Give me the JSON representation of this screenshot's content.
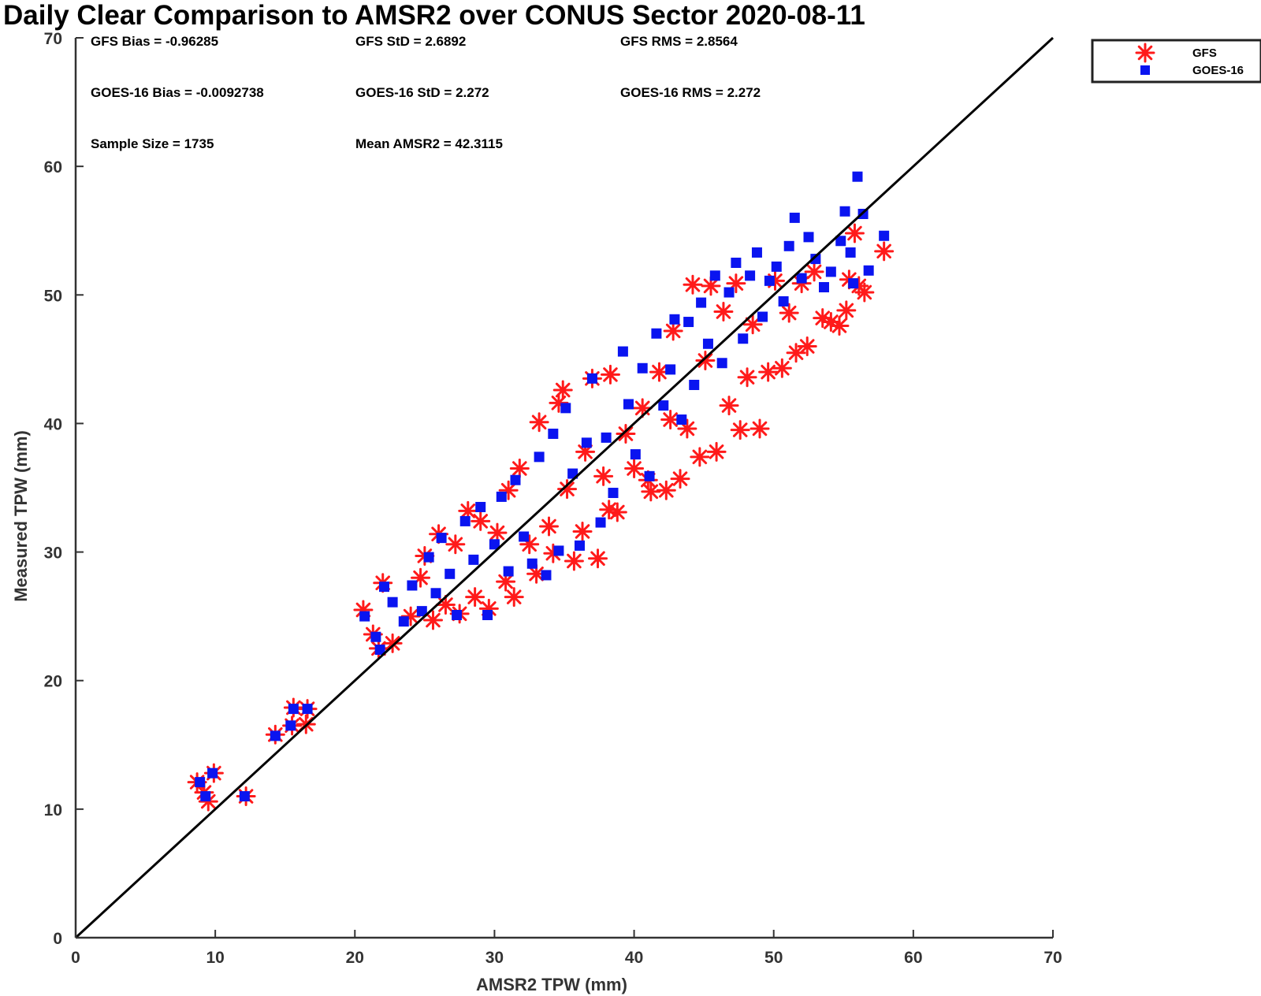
{
  "chart_data": {
    "type": "scatter",
    "title": "Daily Clear Comparison to AMSR2 over CONUS Sector 2020-08-11",
    "xlabel": "AMSR2 TPW (mm)",
    "ylabel": "Measured TPW (mm)",
    "xlim": [
      0,
      70
    ],
    "ylim": [
      0,
      70
    ],
    "xticks": [
      "0",
      "10",
      "20",
      "30",
      "40",
      "50",
      "60",
      "70"
    ],
    "yticks": [
      "0",
      "10",
      "20",
      "30",
      "40",
      "50",
      "60",
      "70"
    ],
    "grid": false,
    "legend_position": "outside-top-right",
    "reference_line": {
      "x": [
        0,
        70
      ],
      "y": [
        0,
        70
      ],
      "color": "#000000"
    },
    "stats": [
      {
        "text": "GFS Bias = -0.96285",
        "col": 0,
        "row": 0
      },
      {
        "text": "GFS StD = 2.6892",
        "col": 1,
        "row": 0
      },
      {
        "text": "GFS RMS = 2.8564",
        "col": 2,
        "row": 0
      },
      {
        "text": "GOES-16 Bias = -0.0092738",
        "col": 0,
        "row": 1
      },
      {
        "text": "GOES-16 StD = 2.272",
        "col": 1,
        "row": 1
      },
      {
        "text": "GOES-16 RMS = 2.272",
        "col": 2,
        "row": 1
      },
      {
        "text": "Sample Size = 1735",
        "col": 0,
        "row": 2
      },
      {
        "text": "Mean AMSR2 = 42.3115",
        "col": 1,
        "row": 2
      }
    ],
    "series": [
      {
        "name": "GFS",
        "marker": "asterisk",
        "color": "#ff1a1a",
        "points": [
          [
            8.7,
            12.1
          ],
          [
            9.2,
            11.3
          ],
          [
            9.5,
            10.6
          ],
          [
            9.9,
            12.8
          ],
          [
            12.2,
            11.0
          ],
          [
            14.3,
            15.8
          ],
          [
            15.5,
            16.5
          ],
          [
            15.6,
            17.9
          ],
          [
            16.5,
            16.6
          ],
          [
            16.6,
            17.8
          ],
          [
            20.6,
            25.5
          ],
          [
            21.3,
            23.6
          ],
          [
            21.7,
            22.5
          ],
          [
            22.0,
            27.6
          ],
          [
            22.7,
            22.9
          ],
          [
            24.0,
            25.0
          ],
          [
            24.7,
            28.0
          ],
          [
            25.0,
            29.7
          ],
          [
            25.6,
            24.7
          ],
          [
            26.0,
            31.4
          ],
          [
            26.5,
            25.9
          ],
          [
            27.2,
            30.6
          ],
          [
            27.5,
            25.2
          ],
          [
            28.1,
            33.2
          ],
          [
            28.6,
            26.5
          ],
          [
            29.0,
            32.4
          ],
          [
            29.6,
            25.6
          ],
          [
            30.2,
            31.5
          ],
          [
            30.8,
            27.7
          ],
          [
            31.0,
            34.8
          ],
          [
            31.4,
            26.5
          ],
          [
            31.8,
            36.5
          ],
          [
            32.5,
            30.6
          ],
          [
            33.0,
            28.3
          ],
          [
            33.2,
            40.1
          ],
          [
            33.9,
            32.0
          ],
          [
            34.2,
            29.9
          ],
          [
            34.6,
            41.6
          ],
          [
            34.9,
            42.6
          ],
          [
            35.2,
            34.9
          ],
          [
            35.7,
            29.3
          ],
          [
            36.3,
            31.6
          ],
          [
            36.5,
            37.8
          ],
          [
            37.0,
            43.5
          ],
          [
            37.4,
            29.5
          ],
          [
            37.8,
            35.9
          ],
          [
            38.2,
            33.3
          ],
          [
            38.3,
            43.8
          ],
          [
            38.8,
            33.1
          ],
          [
            39.4,
            39.2
          ],
          [
            40.0,
            36.5
          ],
          [
            40.6,
            41.2
          ],
          [
            41.0,
            35.6
          ],
          [
            41.2,
            34.7
          ],
          [
            41.8,
            44.0
          ],
          [
            42.3,
            34.8
          ],
          [
            42.6,
            40.3
          ],
          [
            42.8,
            47.2
          ],
          [
            43.3,
            35.7
          ],
          [
            43.8,
            39.6
          ],
          [
            44.2,
            50.8
          ],
          [
            44.7,
            37.4
          ],
          [
            45.1,
            44.9
          ],
          [
            45.5,
            50.7
          ],
          [
            45.9,
            37.8
          ],
          [
            46.4,
            48.7
          ],
          [
            46.8,
            41.4
          ],
          [
            47.3,
            50.9
          ],
          [
            47.6,
            39.5
          ],
          [
            48.1,
            43.6
          ],
          [
            48.5,
            47.7
          ],
          [
            49.0,
            39.6
          ],
          [
            49.6,
            44.0
          ],
          [
            50.1,
            51.1
          ],
          [
            50.6,
            44.3
          ],
          [
            51.1,
            48.6
          ],
          [
            51.6,
            45.5
          ],
          [
            52.0,
            50.9
          ],
          [
            52.4,
            46.0
          ],
          [
            52.9,
            51.8
          ],
          [
            53.5,
            48.2
          ],
          [
            54.1,
            47.9
          ],
          [
            54.7,
            47.6
          ],
          [
            55.2,
            48.8
          ],
          [
            55.4,
            51.2
          ],
          [
            55.8,
            54.8
          ],
          [
            56.1,
            50.7
          ],
          [
            56.5,
            50.2
          ],
          [
            57.9,
            53.4
          ]
        ]
      },
      {
        "name": "GOES-16",
        "marker": "square",
        "color": "#0a14f0",
        "points": [
          [
            8.9,
            12.1
          ],
          [
            9.3,
            11.0
          ],
          [
            9.8,
            12.8
          ],
          [
            12.1,
            11.0
          ],
          [
            14.3,
            15.7
          ],
          [
            15.4,
            16.5
          ],
          [
            15.6,
            17.8
          ],
          [
            16.6,
            17.8
          ],
          [
            20.7,
            25.0
          ],
          [
            21.5,
            23.4
          ],
          [
            21.8,
            22.4
          ],
          [
            22.1,
            27.3
          ],
          [
            22.7,
            26.1
          ],
          [
            23.5,
            24.6
          ],
          [
            24.1,
            27.4
          ],
          [
            24.8,
            25.4
          ],
          [
            25.3,
            29.6
          ],
          [
            25.8,
            26.8
          ],
          [
            26.2,
            31.1
          ],
          [
            26.8,
            28.3
          ],
          [
            27.3,
            25.1
          ],
          [
            27.9,
            32.4
          ],
          [
            28.5,
            29.4
          ],
          [
            29.0,
            33.5
          ],
          [
            29.5,
            25.1
          ],
          [
            30.0,
            30.6
          ],
          [
            30.5,
            34.3
          ],
          [
            31.0,
            28.5
          ],
          [
            31.5,
            35.6
          ],
          [
            32.1,
            31.2
          ],
          [
            32.7,
            29.1
          ],
          [
            33.2,
            37.4
          ],
          [
            33.7,
            28.2
          ],
          [
            34.2,
            39.2
          ],
          [
            34.6,
            30.1
          ],
          [
            35.1,
            41.2
          ],
          [
            35.6,
            36.1
          ],
          [
            36.1,
            30.5
          ],
          [
            36.6,
            38.5
          ],
          [
            37.0,
            43.5
          ],
          [
            37.6,
            32.3
          ],
          [
            38.0,
            38.9
          ],
          [
            38.5,
            34.6
          ],
          [
            39.2,
            45.6
          ],
          [
            39.6,
            41.5
          ],
          [
            40.1,
            37.6
          ],
          [
            40.6,
            44.3
          ],
          [
            41.1,
            35.9
          ],
          [
            41.6,
            47.0
          ],
          [
            42.1,
            41.4
          ],
          [
            42.6,
            44.2
          ],
          [
            42.9,
            48.1
          ],
          [
            43.4,
            40.3
          ],
          [
            43.9,
            47.9
          ],
          [
            44.3,
            43.0
          ],
          [
            44.8,
            49.4
          ],
          [
            45.3,
            46.2
          ],
          [
            45.8,
            51.5
          ],
          [
            46.3,
            44.7
          ],
          [
            46.8,
            50.2
          ],
          [
            47.3,
            52.5
          ],
          [
            47.8,
            46.6
          ],
          [
            48.3,
            51.5
          ],
          [
            48.8,
            53.3
          ],
          [
            49.2,
            48.3
          ],
          [
            49.7,
            51.1
          ],
          [
            50.2,
            52.2
          ],
          [
            50.7,
            49.5
          ],
          [
            51.1,
            53.8
          ],
          [
            51.5,
            56.0
          ],
          [
            52.0,
            51.3
          ],
          [
            52.5,
            54.5
          ],
          [
            53.0,
            52.8
          ],
          [
            53.6,
            50.6
          ],
          [
            54.1,
            51.8
          ],
          [
            54.8,
            54.2
          ],
          [
            55.1,
            56.5
          ],
          [
            55.5,
            53.3
          ],
          [
            55.7,
            50.9
          ],
          [
            56.0,
            59.2
          ],
          [
            56.4,
            56.3
          ],
          [
            56.8,
            51.9
          ],
          [
            57.9,
            54.6
          ]
        ]
      }
    ]
  }
}
